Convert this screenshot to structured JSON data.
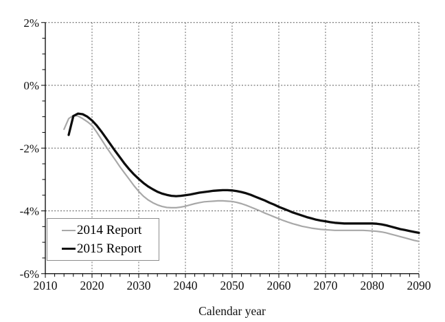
{
  "chart_data": {
    "type": "line",
    "title": "",
    "xlabel": "Calendar year",
    "ylabel": "",
    "xlim": [
      2010,
      2090
    ],
    "ylim": [
      -6,
      2
    ],
    "x_major_ticks": [
      2010,
      2020,
      2030,
      2040,
      2050,
      2060,
      2070,
      2080,
      2090
    ],
    "x_tick_labels": [
      "2010",
      "2020",
      "2030",
      "2040",
      "2050",
      "2060",
      "2070",
      "2080",
      "2090"
    ],
    "x_minor_step": 2,
    "y_major_ticks": [
      2,
      0,
      -2,
      -4,
      -6
    ],
    "y_tick_labels": [
      "2%",
      "0%",
      "-2%",
      "-4%",
      "-6%"
    ],
    "y_minor_step": 0.5,
    "grid": {
      "vertical": "dashed",
      "horizontal": "dashed",
      "color": "#555555"
    },
    "axis_color": "#000000",
    "legend": {
      "position": "lower-left",
      "border_color": "#8c8c8c",
      "background": "#ffffff"
    },
    "series": [
      {
        "name": "2014 Report",
        "color": "#a8a8a8",
        "line_width": 2.2,
        "points": [
          [
            2014,
            -1.4
          ],
          [
            2015,
            -1.06
          ],
          [
            2016,
            -0.96
          ],
          [
            2017,
            -0.98
          ],
          [
            2018,
            -1.06
          ],
          [
            2019,
            -1.16
          ],
          [
            2020,
            -1.28
          ],
          [
            2021,
            -1.49
          ],
          [
            2022,
            -1.72
          ],
          [
            2023,
            -1.95
          ],
          [
            2024,
            -2.17
          ],
          [
            2025,
            -2.38
          ],
          [
            2026,
            -2.6
          ],
          [
            2027,
            -2.8
          ],
          [
            2028,
            -3.0
          ],
          [
            2029,
            -3.2
          ],
          [
            2030,
            -3.38
          ],
          [
            2031,
            -3.53
          ],
          [
            2032,
            -3.65
          ],
          [
            2033,
            -3.74
          ],
          [
            2034,
            -3.81
          ],
          [
            2035,
            -3.86
          ],
          [
            2036,
            -3.89
          ],
          [
            2037,
            -3.9
          ],
          [
            2038,
            -3.9
          ],
          [
            2039,
            -3.88
          ],
          [
            2040,
            -3.85
          ],
          [
            2041,
            -3.81
          ],
          [
            2042,
            -3.77
          ],
          [
            2043,
            -3.74
          ],
          [
            2044,
            -3.71
          ],
          [
            2045,
            -3.7
          ],
          [
            2046,
            -3.69
          ],
          [
            2047,
            -3.68
          ],
          [
            2048,
            -3.68
          ],
          [
            2049,
            -3.69
          ],
          [
            2050,
            -3.7
          ],
          [
            2051,
            -3.73
          ],
          [
            2052,
            -3.77
          ],
          [
            2053,
            -3.82
          ],
          [
            2054,
            -3.88
          ],
          [
            2055,
            -3.94
          ],
          [
            2056,
            -4.0
          ],
          [
            2057,
            -4.07
          ],
          [
            2058,
            -4.13
          ],
          [
            2059,
            -4.19
          ],
          [
            2060,
            -4.25
          ],
          [
            2061,
            -4.31
          ],
          [
            2062,
            -4.36
          ],
          [
            2063,
            -4.41
          ],
          [
            2064,
            -4.45
          ],
          [
            2065,
            -4.49
          ],
          [
            2066,
            -4.52
          ],
          [
            2067,
            -4.55
          ],
          [
            2068,
            -4.57
          ],
          [
            2069,
            -4.59
          ],
          [
            2070,
            -4.6
          ],
          [
            2071,
            -4.61
          ],
          [
            2072,
            -4.62
          ],
          [
            2073,
            -4.62
          ],
          [
            2074,
            -4.62
          ],
          [
            2075,
            -4.62
          ],
          [
            2076,
            -4.62
          ],
          [
            2077,
            -4.62
          ],
          [
            2078,
            -4.62
          ],
          [
            2079,
            -4.63
          ],
          [
            2080,
            -4.64
          ],
          [
            2081,
            -4.65
          ],
          [
            2082,
            -4.67
          ],
          [
            2083,
            -4.7
          ],
          [
            2084,
            -4.74
          ],
          [
            2085,
            -4.78
          ],
          [
            2086,
            -4.82
          ],
          [
            2087,
            -4.86
          ],
          [
            2088,
            -4.9
          ],
          [
            2089,
            -4.94
          ],
          [
            2090,
            -4.97
          ]
        ]
      },
      {
        "name": "2015 Report",
        "color": "#0d0d0d",
        "line_width": 3.3,
        "points": [
          [
            2015,
            -1.58
          ],
          [
            2016,
            -0.98
          ],
          [
            2017,
            -0.9
          ],
          [
            2018,
            -0.92
          ],
          [
            2019,
            -1.0
          ],
          [
            2020,
            -1.12
          ],
          [
            2021,
            -1.28
          ],
          [
            2022,
            -1.47
          ],
          [
            2023,
            -1.68
          ],
          [
            2024,
            -1.89
          ],
          [
            2025,
            -2.1
          ],
          [
            2026,
            -2.3
          ],
          [
            2027,
            -2.5
          ],
          [
            2028,
            -2.68
          ],
          [
            2029,
            -2.84
          ],
          [
            2030,
            -2.98
          ],
          [
            2031,
            -3.11
          ],
          [
            2032,
            -3.22
          ],
          [
            2033,
            -3.31
          ],
          [
            2034,
            -3.39
          ],
          [
            2035,
            -3.45
          ],
          [
            2036,
            -3.49
          ],
          [
            2037,
            -3.52
          ],
          [
            2038,
            -3.53
          ],
          [
            2039,
            -3.52
          ],
          [
            2040,
            -3.5
          ],
          [
            2041,
            -3.48
          ],
          [
            2042,
            -3.45
          ],
          [
            2043,
            -3.42
          ],
          [
            2044,
            -3.4
          ],
          [
            2045,
            -3.38
          ],
          [
            2046,
            -3.36
          ],
          [
            2047,
            -3.35
          ],
          [
            2048,
            -3.34
          ],
          [
            2049,
            -3.34
          ],
          [
            2050,
            -3.35
          ],
          [
            2051,
            -3.37
          ],
          [
            2052,
            -3.4
          ],
          [
            2053,
            -3.44
          ],
          [
            2054,
            -3.49
          ],
          [
            2055,
            -3.55
          ],
          [
            2056,
            -3.61
          ],
          [
            2057,
            -3.67
          ],
          [
            2058,
            -3.74
          ],
          [
            2059,
            -3.8
          ],
          [
            2060,
            -3.87
          ],
          [
            2061,
            -3.93
          ],
          [
            2062,
            -3.99
          ],
          [
            2063,
            -4.05
          ],
          [
            2064,
            -4.1
          ],
          [
            2065,
            -4.15
          ],
          [
            2066,
            -4.2
          ],
          [
            2067,
            -4.24
          ],
          [
            2068,
            -4.28
          ],
          [
            2069,
            -4.31
          ],
          [
            2070,
            -4.33
          ],
          [
            2071,
            -4.36
          ],
          [
            2072,
            -4.38
          ],
          [
            2073,
            -4.39
          ],
          [
            2074,
            -4.4
          ],
          [
            2075,
            -4.4
          ],
          [
            2076,
            -4.4
          ],
          [
            2077,
            -4.4
          ],
          [
            2078,
            -4.4
          ],
          [
            2079,
            -4.4
          ],
          [
            2080,
            -4.4
          ],
          [
            2081,
            -4.41
          ],
          [
            2082,
            -4.43
          ],
          [
            2083,
            -4.46
          ],
          [
            2084,
            -4.5
          ],
          [
            2085,
            -4.54
          ],
          [
            2086,
            -4.58
          ],
          [
            2087,
            -4.61
          ],
          [
            2088,
            -4.64
          ],
          [
            2089,
            -4.67
          ],
          [
            2090,
            -4.7
          ]
        ]
      }
    ]
  }
}
